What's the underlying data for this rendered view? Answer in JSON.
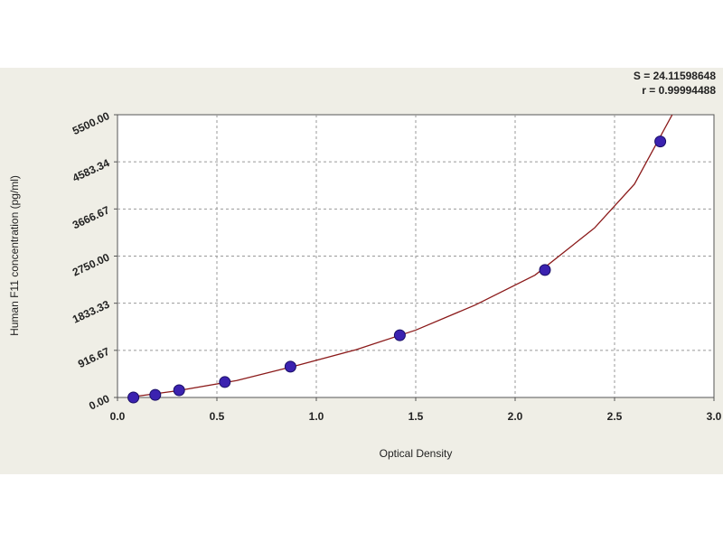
{
  "chart_data": {
    "type": "scatter",
    "annotations": [
      "S = 24.11598648",
      "r = 0.99994488"
    ],
    "x_label": "Optical Density",
    "y_label": "Human F11 concentration (pg/ml)",
    "x": [
      0.08,
      0.19,
      0.31,
      0.54,
      0.87,
      1.42,
      2.15,
      2.73
    ],
    "values": [
      0,
      50,
      140,
      300,
      600,
      1210,
      2480,
      4980
    ],
    "color": "#3b22b0",
    "curve": {
      "x": [
        0.05,
        0.3,
        0.6,
        0.9,
        1.2,
        1.5,
        1.8,
        2.1,
        2.4,
        2.6,
        2.79
      ],
      "values": [
        0,
        130,
        330,
        620,
        930,
        1310,
        1800,
        2380,
        3300,
        4150,
        5500
      ],
      "color": "#8b1a1a"
    },
    "xlim": [
      0,
      3.0
    ],
    "xticks": [
      {
        "value": 0,
        "label": "0.0"
      },
      0.5,
      {
        "value": 1,
        "label": "1.0"
      },
      1.5,
      {
        "value": 2,
        "label": "2.0"
      },
      2.5,
      {
        "value": 3,
        "label": "3.0"
      }
    ],
    "ylim": [
      0,
      5500
    ],
    "yticks": [
      {
        "value": 0,
        "label": "0.00"
      },
      916.67,
      1833.33,
      {
        "value": 2750,
        "label": "2750.00"
      },
      3666.67,
      4583.34,
      {
        "value": 5500,
        "label": "5500.00"
      }
    ],
    "grid": true
  }
}
